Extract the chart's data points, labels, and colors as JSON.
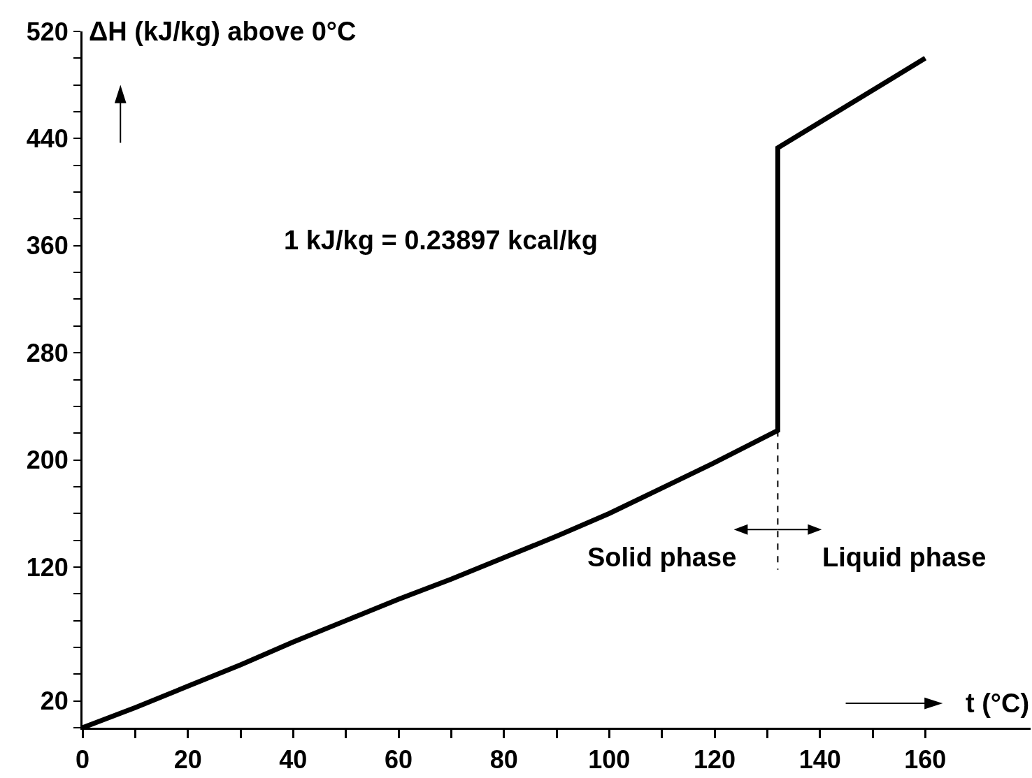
{
  "chart_data": {
    "type": "line",
    "xlabel": "t (°C)",
    "ylabel": "ΔH (kJ/kg) above 0°C",
    "xlim": [
      0,
      180
    ],
    "xticks": [
      0,
      {
        "value": 10,
        "label": null
      },
      20,
      {
        "value": 30,
        "label": null
      },
      40,
      {
        "value": 50,
        "label": null
      },
      60,
      {
        "value": 70,
        "label": null
      },
      80,
      {
        "value": 90,
        "label": null
      },
      100,
      {
        "value": 110,
        "label": null
      },
      120,
      {
        "value": 130,
        "label": null
      },
      140,
      {
        "value": 150,
        "label": null
      },
      160
    ],
    "ylim": [
      0,
      520
    ],
    "yticks": [
      {
        "value": 0,
        "label": null
      },
      20,
      {
        "value": 40,
        "label": null
      },
      {
        "value": 60,
        "label": null
      },
      {
        "value": 80,
        "label": null
      },
      {
        "value": 100,
        "label": null
      },
      120,
      {
        "value": 140,
        "label": null
      },
      {
        "value": 160,
        "label": null
      },
      {
        "value": 180,
        "label": null
      },
      200,
      {
        "value": 220,
        "label": null
      },
      {
        "value": 240,
        "label": null
      },
      {
        "value": 260,
        "label": null
      },
      280,
      {
        "value": 300,
        "label": null
      },
      {
        "value": 320,
        "label": null
      },
      {
        "value": 340,
        "label": null
      },
      360,
      {
        "value": 380,
        "label": null
      },
      {
        "value": 400,
        "label": null
      },
      {
        "value": 420,
        "label": null
      },
      440,
      {
        "value": 460,
        "label": null
      },
      {
        "value": 480,
        "label": null
      },
      {
        "value": 500,
        "label": null
      },
      520
    ],
    "marker": "none",
    "series": [
      {
        "color": "#000000",
        "line_style": "solid",
        "x": [
          0,
          10,
          20,
          30,
          40,
          50,
          60,
          70,
          80,
          90,
          100,
          110,
          120,
          132,
          132,
          160
        ],
        "values": [
          0,
          15,
          31,
          47,
          64,
          80,
          96,
          111,
          127,
          143,
          160,
          179,
          198,
          222,
          433,
          500
        ]
      },
      {
        "color": "#000000",
        "line_style": "dashed",
        "x": [
          132,
          132
        ],
        "values": [
          222,
          118
        ]
      }
    ],
    "annotations": [
      "1 kJ/kg = 0.23897 kcal/kg",
      {
        "text": "Solid phase",
        "x": 132,
        "y": 148
      },
      {
        "text": "Liquid phase",
        "x": 132,
        "y": 148
      }
    ]
  }
}
